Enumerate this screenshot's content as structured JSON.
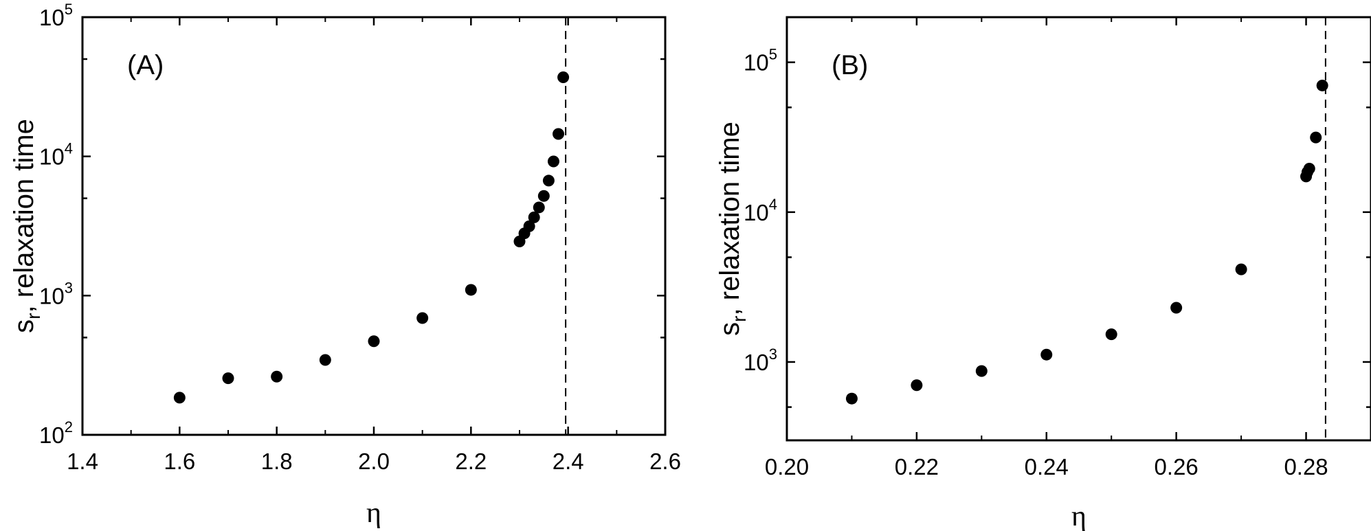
{
  "chart_data": [
    {
      "type": "scatter",
      "panel_label": "(A)",
      "xlabel": "η",
      "ylabel_main": "s",
      "ylabel_sub": "r",
      "ylabel_rest": ", relaxation time",
      "xlim": [
        1.4,
        2.6
      ],
      "ylim": [
        100,
        100000
      ],
      "yscale": "log",
      "xticks": [
        1.4,
        1.6,
        1.8,
        2.0,
        2.2,
        2.4,
        2.6
      ],
      "xtick_labels": [
        "1.4",
        "1.6",
        "1.8",
        "2.0",
        "2.2",
        "2.4",
        "2.6"
      ],
      "yticks": [
        100,
        1000,
        10000,
        100000
      ],
      "ytick_base": "10",
      "ytick_exponents": [
        "2",
        "3",
        "4",
        "5"
      ],
      "vline_x": 2.395,
      "grid": false,
      "legend": "none",
      "points": [
        {
          "x": 1.6,
          "y": 185
        },
        {
          "x": 1.7,
          "y": 255
        },
        {
          "x": 1.8,
          "y": 262
        },
        {
          "x": 1.9,
          "y": 345
        },
        {
          "x": 2.0,
          "y": 470
        },
        {
          "x": 2.1,
          "y": 690
        },
        {
          "x": 2.2,
          "y": 1100
        },
        {
          "x": 2.3,
          "y": 2450
        },
        {
          "x": 2.31,
          "y": 2800
        },
        {
          "x": 2.32,
          "y": 3150
        },
        {
          "x": 2.33,
          "y": 3650
        },
        {
          "x": 2.34,
          "y": 4300
        },
        {
          "x": 2.35,
          "y": 5200
        },
        {
          "x": 2.36,
          "y": 6700
        },
        {
          "x": 2.37,
          "y": 9200
        },
        {
          "x": 2.38,
          "y": 14500
        },
        {
          "x": 2.39,
          "y": 37000
        }
      ]
    },
    {
      "type": "scatter",
      "panel_label": "(B)",
      "xlabel": "η",
      "ylabel_main": "s",
      "ylabel_sub": "r",
      "ylabel_rest": ", relaxation time",
      "xlim": [
        0.2,
        0.29
      ],
      "ylim": [
        300,
        200000
      ],
      "yscale": "log",
      "xticks": [
        0.2,
        0.22,
        0.24,
        0.26,
        0.28
      ],
      "xtick_labels": [
        "0.20",
        "0.22",
        "0.24",
        "0.26",
        "0.28"
      ],
      "yticks": [
        1000,
        10000,
        100000
      ],
      "ytick_base": "10",
      "ytick_exponents": [
        "3",
        "4",
        "5"
      ],
      "vline_x": 0.283,
      "grid": false,
      "legend": "none",
      "points": [
        {
          "x": 0.21,
          "y": 570
        },
        {
          "x": 0.22,
          "y": 700
        },
        {
          "x": 0.23,
          "y": 870
        },
        {
          "x": 0.24,
          "y": 1120
        },
        {
          "x": 0.25,
          "y": 1530
        },
        {
          "x": 0.26,
          "y": 2300
        },
        {
          "x": 0.27,
          "y": 4150
        },
        {
          "x": 0.28,
          "y": 17300
        },
        {
          "x": 0.2802,
          "y": 18500
        },
        {
          "x": 0.2805,
          "y": 19500
        },
        {
          "x": 0.2815,
          "y": 31500
        },
        {
          "x": 0.2825,
          "y": 70000
        }
      ]
    }
  ]
}
